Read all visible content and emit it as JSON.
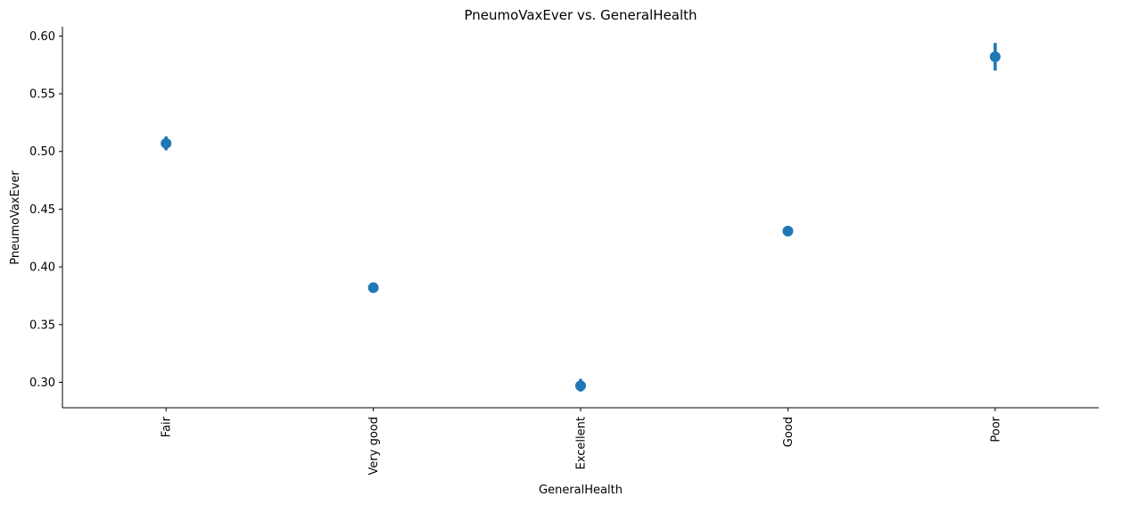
{
  "chart_data": {
    "type": "scatter",
    "subtype": "pointplot-with-error-bars",
    "title": "PneumoVaxEver vs. GeneralHealth",
    "xlabel": "GeneralHealth",
    "ylabel": "PneumoVaxEver",
    "categories": [
      "Fair",
      "Very good",
      "Excellent",
      "Good",
      "Poor"
    ],
    "values": [
      0.507,
      0.382,
      0.297,
      0.431,
      0.582
    ],
    "error_low": [
      0.501,
      0.379,
      0.292,
      0.427,
      0.57
    ],
    "error_high": [
      0.513,
      0.385,
      0.303,
      0.435,
      0.594
    ],
    "ylim": [
      0.278,
      0.608
    ],
    "yticks": [
      0.3,
      0.35,
      0.4,
      0.45,
      0.5,
      0.55,
      0.6
    ],
    "ytick_labels": [
      "0.30",
      "0.35",
      "0.40",
      "0.45",
      "0.50",
      "0.55",
      "0.60"
    ],
    "xtick_rotation": "vertical",
    "grid": false,
    "legend": "none",
    "color": "#1f77b4"
  }
}
